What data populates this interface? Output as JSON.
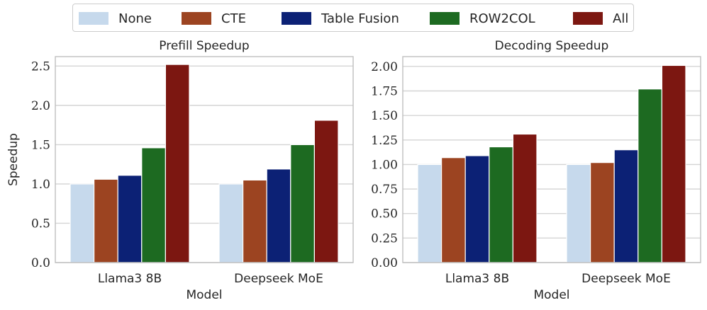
{
  "chart_data": {
    "type": "bar",
    "legend": {
      "placement": "top-center",
      "entries": [
        {
          "name": "None",
          "color": "#c6d9ec"
        },
        {
          "name": "CTE",
          "color": "#9c4421"
        },
        {
          "name": "Table Fusion",
          "color": "#0c2175"
        },
        {
          "name": "ROW2COL",
          "color": "#1d6a21"
        },
        {
          "name": "All",
          "color": "#7c1711"
        }
      ]
    },
    "panels": [
      {
        "title": "Prefill Speedup",
        "xlabel": "Model",
        "ylabel": "Speedup",
        "categories": [
          "Llama3 8B",
          "Deepseek MoE"
        ],
        "ylim": [
          0,
          2.62
        ],
        "yticks": [
          "0.0",
          "0.5",
          "1.0",
          "1.5",
          "2.0",
          "2.5"
        ],
        "grid": true,
        "series": [
          {
            "name": "None",
            "values": [
              1.0,
              1.0
            ]
          },
          {
            "name": "CTE",
            "values": [
              1.06,
              1.05
            ]
          },
          {
            "name": "Table Fusion",
            "values": [
              1.11,
              1.19
            ]
          },
          {
            "name": "ROW2COL",
            "values": [
              1.46,
              1.5
            ]
          },
          {
            "name": "All",
            "values": [
              2.52,
              1.81
            ]
          }
        ]
      },
      {
        "title": "Decoding Speedup",
        "xlabel": "Model",
        "ylabel": "",
        "categories": [
          "Llama3 8B",
          "Deepseek MoE"
        ],
        "ylim": [
          0,
          2.1
        ],
        "yticks": [
          "0.00",
          "0.25",
          "0.50",
          "0.75",
          "1.00",
          "1.25",
          "1.50",
          "1.75",
          "2.00"
        ],
        "grid": true,
        "series": [
          {
            "name": "None",
            "values": [
              1.0,
              1.0
            ]
          },
          {
            "name": "CTE",
            "values": [
              1.07,
              1.02
            ]
          },
          {
            "name": "Table Fusion",
            "values": [
              1.09,
              1.15
            ]
          },
          {
            "name": "ROW2COL",
            "values": [
              1.18,
              1.77
            ]
          },
          {
            "name": "All",
            "values": [
              1.31,
              2.01
            ]
          }
        ]
      }
    ]
  }
}
